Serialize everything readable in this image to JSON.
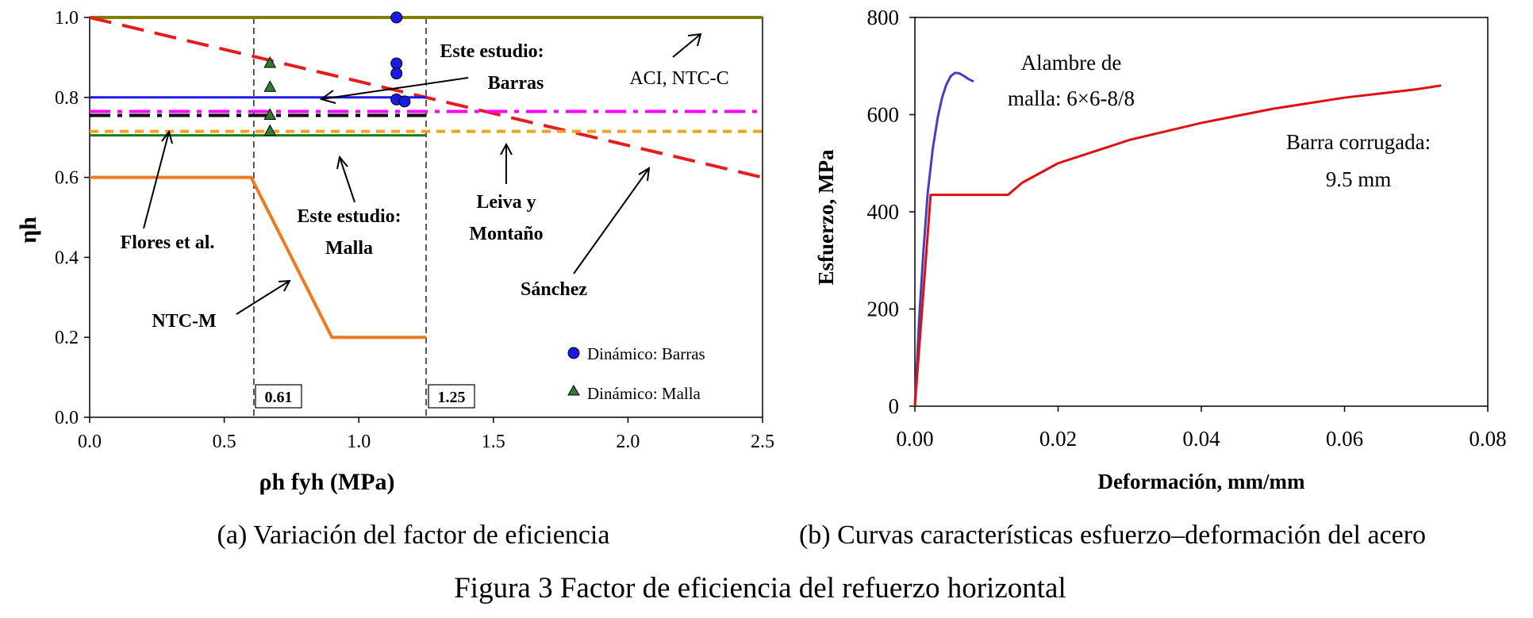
{
  "figure_title": "Figura 3 Factor de eficiencia del refuerzo horizontal",
  "colors": {
    "aci": "#808000",
    "sanchez": "#e41e1e",
    "barras_line": "#1a1ae6",
    "magenta": "#ff00ff",
    "flores": "#000000",
    "leiva": "#f5a020",
    "malla_line": "#1a7a1a",
    "ntcm": "#f07820",
    "barras_marker": "#1a1ae6",
    "malla_marker": "#2e7d32",
    "alambre": "#4040c0",
    "barra_corrugada": "#e01010"
  },
  "chart_data": [
    {
      "type": "line",
      "caption": "(a) Variación del factor de eficiencia",
      "xlabel": "ρh fyh (MPa)",
      "ylabel": "ηh",
      "xlim": [
        0,
        2.5
      ],
      "ylim": [
        0,
        1.0
      ],
      "xticks": [
        "0.0",
        "0.5",
        "1.0",
        "1.5",
        "2.0",
        "2.5"
      ],
      "yticks": [
        "0.0",
        "0.2",
        "0.4",
        "0.6",
        "0.8",
        "1.0"
      ],
      "vertical_markers": [
        {
          "x": 0.61,
          "label": "0.61"
        },
        {
          "x": 1.25,
          "label": "1.25"
        }
      ],
      "series": [
        {
          "name": "ACI, NTC-C",
          "x": [
            0,
            2.5
          ],
          "y": [
            1.0,
            1.0
          ]
        },
        {
          "name": "Sánchez",
          "x": [
            0,
            2.5
          ],
          "y": [
            1.0,
            0.6
          ]
        },
        {
          "name": "Este estudio: Barras",
          "x": [
            0,
            1.25
          ],
          "y": [
            0.8,
            0.8
          ]
        },
        {
          "name": "Magenta",
          "x": [
            0,
            2.5
          ],
          "y": [
            0.765,
            0.765
          ]
        },
        {
          "name": "Flores et al.",
          "x": [
            0,
            1.25
          ],
          "y": [
            0.755,
            0.755
          ]
        },
        {
          "name": "Leiva y Montaño",
          "x": [
            0,
            2.5
          ],
          "y": [
            0.715,
            0.715
          ]
        },
        {
          "name": "Este estudio: Malla",
          "x": [
            0,
            1.25
          ],
          "y": [
            0.705,
            0.705
          ]
        },
        {
          "name": "NTC-M",
          "x": [
            0,
            0.6,
            0.9,
            1.25
          ],
          "y": [
            0.6,
            0.6,
            0.2,
            0.2
          ]
        }
      ],
      "points_barras": {
        "name": "Dinámico: Barras",
        "x": [
          1.14,
          1.14,
          1.14,
          1.14,
          1.17
        ],
        "y": [
          1.0,
          0.885,
          0.86,
          0.795,
          0.79
        ]
      },
      "points_malla": {
        "name": "Dinámico: Malla",
        "x": [
          0.67,
          0.67,
          0.67,
          0.67
        ],
        "y": [
          0.885,
          0.825,
          0.755,
          0.715
        ]
      },
      "annotations": {
        "este_barras_1": "Este estudio:",
        "este_barras_2": "Barras",
        "aci": "ACI, NTC-C",
        "flores": "Flores et al.",
        "este_malla_1": "Este estudio:",
        "este_malla_2": "Malla",
        "leiva_1": "Leiva y",
        "leiva_2": "Montaño",
        "sanchez": "Sánchez",
        "ntcm": "NTC-M"
      },
      "legend": [
        "Dinámico: Barras",
        "Dinámico: Malla"
      ]
    },
    {
      "type": "line",
      "caption": "(b) Curvas características esfuerzo–deformación del acero",
      "xlabel": "Deformación, mm/mm",
      "ylabel": "Esfuerzo, MPa",
      "xlim": [
        0,
        0.08
      ],
      "ylim": [
        0,
        800
      ],
      "xticks": [
        "0.00",
        "0.02",
        "0.04",
        "0.06",
        "0.08"
      ],
      "yticks": [
        "0",
        "200",
        "400",
        "600",
        "800"
      ],
      "series": [
        {
          "name": "Alambre de malla: 6×6-8/8",
          "x": [
            0,
            0.0006,
            0.0012,
            0.0018,
            0.0025,
            0.0032,
            0.0038,
            0.0044,
            0.005,
            0.0056,
            0.0062,
            0.0068,
            0.0074,
            0.0082
          ],
          "y": [
            0,
            180,
            320,
            440,
            530,
            595,
            635,
            662,
            679,
            686,
            685,
            680,
            674,
            668
          ]
        },
        {
          "name": "Barra corrugada: 9.5 mm",
          "x": [
            0,
            0.0022,
            0.013,
            0.015,
            0.02,
            0.03,
            0.04,
            0.05,
            0.06,
            0.07,
            0.0735
          ],
          "y": [
            0,
            435,
            435,
            460,
            500,
            548,
            583,
            612,
            635,
            652,
            660
          ]
        }
      ],
      "annotations": {
        "alambre_1": "Alambre de",
        "alambre_2": "malla: 6×6-8/8",
        "barra_1": "Barra corrugada:",
        "barra_2": "9.5 mm"
      }
    }
  ]
}
